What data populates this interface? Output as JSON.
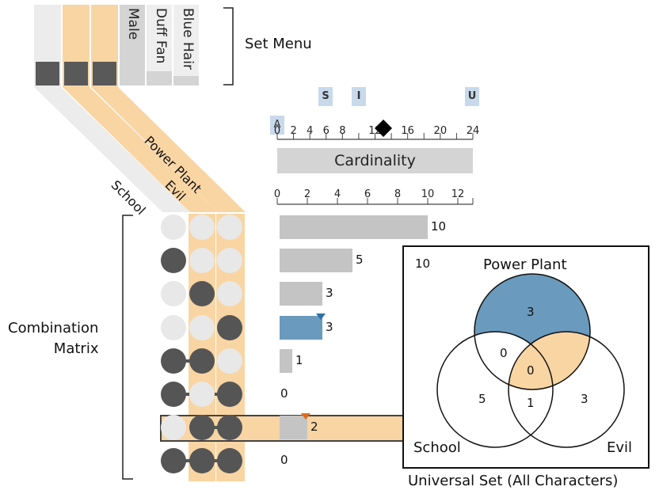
{
  "set_menu": {
    "label": "Set Menu",
    "sets": [
      "Male",
      "Duff Fan",
      "Blue Hair"
    ]
  },
  "set_headers": [
    "School",
    "Evil",
    "Power Plant"
  ],
  "cardinality": {
    "top_ticks": [
      "0",
      "2",
      "4",
      "6",
      "8",
      "",
      "12",
      "",
      "16",
      "",
      "20",
      "",
      "24"
    ],
    "markers": [
      "A",
      "S",
      "I",
      "U"
    ],
    "slider_value": 13,
    "button_label": "Cardinality",
    "axis_ticks": [
      "0",
      "2",
      "4",
      "6",
      "8",
      "10",
      "12"
    ]
  },
  "matrix_label": "Combination\nMatrix",
  "chart_data": {
    "type": "bar",
    "orientation": "horizontal",
    "rows": [
      {
        "sets": [
          false,
          false,
          false
        ],
        "value": 10,
        "label": "10"
      },
      {
        "sets": [
          true,
          false,
          false
        ],
        "value": 5,
        "label": "5"
      },
      {
        "sets": [
          false,
          true,
          false
        ],
        "value": 3,
        "label": "3"
      },
      {
        "sets": [
          false,
          false,
          true
        ],
        "value": 3,
        "label": "3",
        "highlight": "blue"
      },
      {
        "sets": [
          true,
          true,
          false
        ],
        "value": 1,
        "label": "1"
      },
      {
        "sets": [
          true,
          false,
          true
        ],
        "value": 0,
        "label": "0"
      },
      {
        "sets": [
          false,
          true,
          true
        ],
        "value": 2,
        "label": "2",
        "highlight": "orange"
      },
      {
        "sets": [
          true,
          true,
          true
        ],
        "value": 0,
        "label": "0"
      }
    ],
    "xlim": [
      0,
      13
    ]
  },
  "venn": {
    "outside_count": "10",
    "labels": {
      "top": "Power Plant",
      "left": "School",
      "right": "Evil"
    },
    "regions": {
      "power_plant_only": "3",
      "school_power": "0",
      "center": "0",
      "school_only": "5",
      "school_evil": "1",
      "evil_only": "3"
    },
    "caption": "Universal Set (All Characters)"
  },
  "colors": {
    "orange": "#f9d5a3",
    "blue": "#6a9abd",
    "gray_bar": "#c4c4c4",
    "dark_dot": "#555555"
  }
}
